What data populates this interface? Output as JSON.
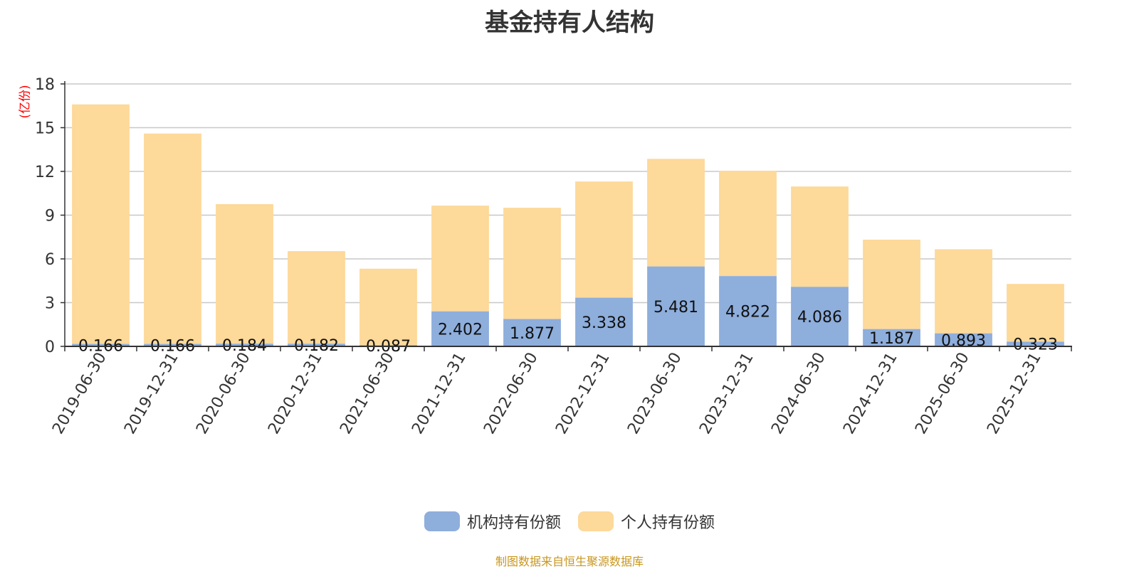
{
  "title": "基金持有人结构",
  "source": "制图数据来自恒生聚源数据库",
  "chart_data": {
    "type": "bar",
    "stacked": true,
    "title": "基金持有人结构",
    "ylabel": "(亿份)",
    "ylim": [
      0,
      18
    ],
    "yticks": [
      0,
      3,
      6,
      9,
      12,
      15,
      18
    ],
    "grid": true,
    "legend_position": "bottom",
    "categories": [
      "2019-06-30",
      "2019-12-31",
      "2020-06-30",
      "2020-12-31",
      "2021-06-30",
      "2021-12-31",
      "2022-06-30",
      "2022-12-31",
      "2023-06-30",
      "2023-12-31",
      "2024-06-30",
      "2024-12-31",
      "2025-06-30",
      "2025-12-31"
    ],
    "series": [
      {
        "name": "机构持有份额",
        "color": "#8eaedc",
        "values": [
          0.166,
          0.166,
          0.184,
          0.182,
          0.087,
          2.402,
          1.877,
          3.338,
          5.481,
          4.822,
          4.086,
          1.187,
          0.893,
          0.323
        ],
        "labels": [
          "0.166",
          "0.166",
          "0.184",
          "0.182",
          "0.087",
          "2.402",
          "1.877",
          "3.338",
          "5.481",
          "4.822",
          "4.086",
          "1.187",
          "0.893",
          "0.323"
        ]
      },
      {
        "name": "个人持有份额",
        "color": "#fdd99a",
        "values": [
          16.43,
          14.43,
          9.57,
          6.35,
          5.24,
          7.25,
          7.63,
          7.97,
          7.38,
          7.22,
          6.88,
          6.13,
          5.77,
          3.96
        ]
      }
    ]
  }
}
